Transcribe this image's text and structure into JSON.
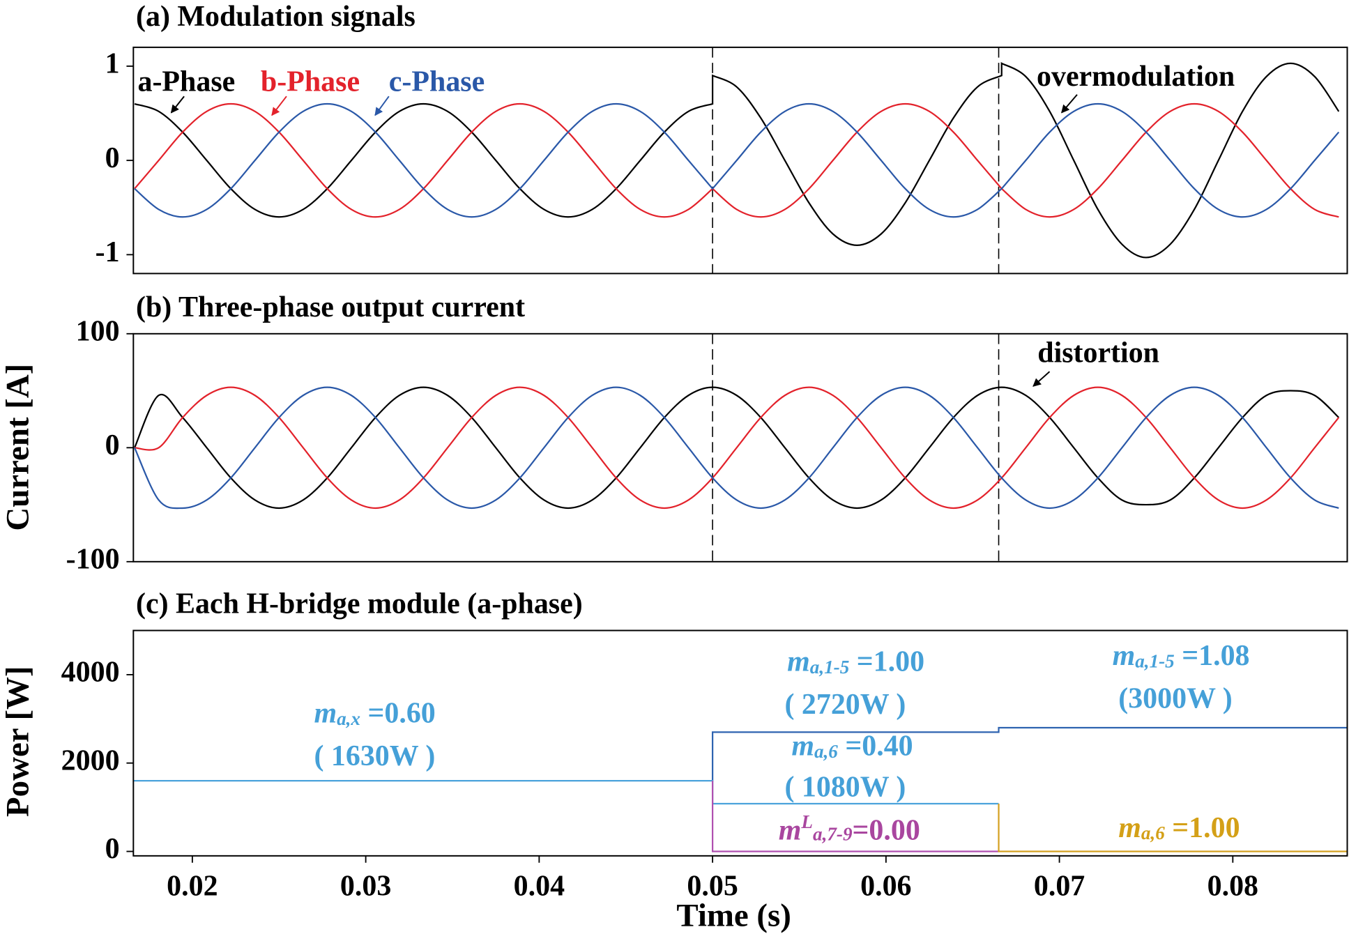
{
  "chart_data": [
    {
      "type": "line",
      "title": "(a) Modulation signals",
      "x": [
        0.01667,
        0.01806,
        0.01944,
        0.02083,
        0.02222,
        0.02361,
        0.025,
        0.02639,
        0.02778,
        0.02917,
        0.03056,
        0.03194,
        0.03333,
        0.03472,
        0.03611,
        0.0375,
        0.03889,
        0.04028,
        0.04167,
        0.04306,
        0.04444,
        0.04583,
        0.04722,
        0.04861,
        0.05,
        0.05,
        0.05139,
        0.05278,
        0.05417,
        0.05556,
        0.05694,
        0.05833,
        0.05972,
        0.06111,
        0.0625,
        0.06389,
        0.06528,
        0.06667,
        0.06667,
        0.06806,
        0.06944,
        0.07083,
        0.07222,
        0.07361,
        0.075,
        0.07639,
        0.07778,
        0.07917,
        0.08056,
        0.08194,
        0.08333,
        0.08472,
        0.08611
      ],
      "series": [
        {
          "name": "a-Phase",
          "color": "#000000",
          "values": [
            0.6,
            0.52,
            0.3,
            0,
            -0.3,
            -0.52,
            -0.6,
            -0.52,
            -0.3,
            0,
            0.3,
            0.52,
            0.6,
            0.52,
            0.3,
            0,
            -0.3,
            -0.52,
            -0.6,
            -0.52,
            -0.3,
            0,
            0.3,
            0.52,
            0.6,
            0.9,
            0.78,
            0.45,
            0,
            -0.45,
            -0.78,
            -0.9,
            -0.78,
            -0.45,
            0,
            0.45,
            0.78,
            0.9,
            1.03,
            0.89,
            0.52,
            0,
            -0.52,
            -0.89,
            -1.03,
            -0.89,
            -0.52,
            0,
            0.52,
            0.89,
            1.03,
            0.89,
            0.52
          ]
        },
        {
          "name": "b-Phase",
          "color": "#e3222b",
          "values": [
            -0.3,
            0,
            0.3,
            0.52,
            0.6,
            0.52,
            0.3,
            0,
            -0.3,
            -0.52,
            -0.6,
            -0.52,
            -0.3,
            0,
            0.3,
            0.52,
            0.6,
            0.52,
            0.3,
            0,
            -0.3,
            -0.52,
            -0.6,
            -0.52,
            -0.3,
            -0.3,
            -0.52,
            -0.6,
            -0.52,
            -0.3,
            0,
            0.3,
            0.52,
            0.6,
            0.52,
            0.3,
            0,
            -0.3,
            -0.3,
            -0.52,
            -0.6,
            -0.52,
            -0.3,
            0,
            0.3,
            0.52,
            0.6,
            0.52,
            0.3,
            0,
            -0.3,
            -0.52,
            -0.6
          ]
        },
        {
          "name": "c-Phase",
          "color": "#2a58a8",
          "values": [
            -0.3,
            -0.52,
            -0.6,
            -0.52,
            -0.3,
            0,
            0.3,
            0.52,
            0.6,
            0.52,
            0.3,
            0,
            -0.3,
            -0.52,
            -0.6,
            -0.52,
            -0.3,
            0,
            0.3,
            0.52,
            0.6,
            0.52,
            0.3,
            0,
            -0.3,
            -0.3,
            0,
            0.3,
            0.52,
            0.6,
            0.52,
            0.3,
            0,
            -0.3,
            -0.52,
            -0.6,
            -0.52,
            -0.3,
            -0.3,
            0,
            0.3,
            0.52,
            0.6,
            0.52,
            0.3,
            0,
            -0.3,
            -0.52,
            -0.6,
            -0.52,
            -0.3,
            0,
            0.3
          ]
        }
      ],
      "xlim": [
        0.0166,
        0.0866
      ],
      "ylim": [
        -1.2,
        1.2
      ],
      "yticks": [
        -1,
        0,
        1
      ],
      "vlines": [
        0.05,
        0.0665
      ],
      "annotations": [
        "overmodulation"
      ]
    },
    {
      "type": "line",
      "title": "(b) Three-phase output current",
      "ylabel": "Current [A]",
      "x": [
        0.01667,
        0.01806,
        0.01944,
        0.02083,
        0.02222,
        0.02361,
        0.025,
        0.02639,
        0.02778,
        0.02917,
        0.03056,
        0.03194,
        0.03333,
        0.03472,
        0.03611,
        0.0375,
        0.03889,
        0.04028,
        0.04167,
        0.04306,
        0.04444,
        0.04583,
        0.04722,
        0.04861,
        0.05,
        0.05139,
        0.05278,
        0.05417,
        0.05556,
        0.05694,
        0.05833,
        0.05972,
        0.06111,
        0.0625,
        0.06389,
        0.06528,
        0.06667,
        0.06806,
        0.06944,
        0.07083,
        0.07222,
        0.07361,
        0.075,
        0.07639,
        0.07778,
        0.07917,
        0.08056,
        0.08194,
        0.08333,
        0.08472,
        0.08611
      ],
      "series": [
        {
          "color": "#000000",
          "values": [
            0,
            45.9,
            26.5,
            0,
            -26.5,
            -45.9,
            -53,
            -45.9,
            -26.5,
            0,
            26.5,
            45.9,
            53,
            45.9,
            26.5,
            0,
            -26.5,
            -45.9,
            -53,
            -45.9,
            -26.5,
            0,
            26.5,
            45.9,
            53,
            45.9,
            26.5,
            0,
            -26.5,
            -45.9,
            -53,
            -45.9,
            -26.5,
            0,
            26.5,
            45.9,
            53,
            45.9,
            26.5,
            0,
            -26.5,
            -45.9,
            -50,
            -45.9,
            -26.5,
            0,
            26.5,
            45.9,
            50,
            45.9,
            26.5
          ]
        },
        {
          "color": "#e3222b",
          "values": [
            0,
            0,
            26.5,
            45.9,
            53,
            45.9,
            26.5,
            0,
            -26.5,
            -45.9,
            -53,
            -45.9,
            -26.5,
            0,
            26.5,
            45.9,
            53,
            45.9,
            26.5,
            0,
            -26.5,
            -45.9,
            -53,
            -45.9,
            -26.5,
            0,
            26.5,
            45.9,
            53,
            45.9,
            26.5,
            0,
            -26.5,
            -45.9,
            -53,
            -45.9,
            -26.5,
            0,
            26.5,
            45.9,
            53,
            45.9,
            26.5,
            0,
            -26.5,
            -45.9,
            -53,
            -45.9,
            -26.5,
            0,
            26.5
          ]
        },
        {
          "color": "#2a58a8",
          "values": [
            0,
            -45.9,
            -53,
            -45.9,
            -26.5,
            0,
            26.5,
            45.9,
            53,
            45.9,
            26.5,
            0,
            -26.5,
            -45.9,
            -53,
            -45.9,
            -26.5,
            0,
            26.5,
            45.9,
            53,
            45.9,
            26.5,
            0,
            -26.5,
            -45.9,
            -53,
            -45.9,
            -26.5,
            0,
            26.5,
            45.9,
            53,
            45.9,
            26.5,
            0,
            -26.5,
            -45.9,
            -53,
            -45.9,
            -26.5,
            0,
            26.5,
            45.9,
            53,
            45.9,
            26.5,
            0,
            -26.5,
            -45.9,
            -53
          ]
        }
      ],
      "xlim": [
        0.0166,
        0.0866
      ],
      "ylim": [
        -100,
        100
      ],
      "yticks": [
        -100,
        0,
        100
      ],
      "vlines": [
        0.05,
        0.0665
      ],
      "annotations": [
        "distortion"
      ]
    },
    {
      "type": "line",
      "title": "(c) Each H-bridge module (a-phase)",
      "ylabel": "Power [W]",
      "xlabel": "Time (s)",
      "x": [
        0.0166,
        0.05,
        0.05,
        0.0665,
        0.0665,
        0.0866
      ],
      "series": [
        {
          "color": "#2e63b0",
          "values": [
            1600,
            1600,
            2700,
            2700,
            2800,
            2800
          ]
        },
        {
          "color": "#4aa3dc",
          "values": [
            1600,
            1600,
            1080,
            1080,
            null,
            null
          ]
        },
        {
          "color": "#b050b0",
          "values": [
            null,
            1600,
            0,
            0,
            null,
            null
          ]
        },
        {
          "color": "#d4a020",
          "values": [
            null,
            null,
            null,
            1080,
            0,
            0
          ]
        }
      ],
      "xlim": [
        0.0166,
        0.0866
      ],
      "ylim": [
        -100,
        5000
      ],
      "yticks": [
        0,
        2000,
        4000
      ],
      "xticks": [
        0.02,
        0.03,
        0.04,
        0.05,
        0.06,
        0.07,
        0.08
      ],
      "annotations": [
        {
          "symbol": "m",
          "sub": "a,x",
          "text": " =0.60"
        },
        {
          "symbol": "m",
          "sub": "a,1-5",
          "text": " =1.00"
        },
        {
          "symbol": "m",
          "sub": "a,6",
          "text": " =0.40"
        },
        {
          "symbol": "m",
          "sup": "L",
          "sub": "a,7-9",
          "text": "=0.00"
        },
        {
          "symbol": "m",
          "sub": "a,1-5",
          "text": " =1.08"
        },
        {
          "symbol": "m",
          "sub": "a,6",
          "text": " =1.00"
        }
      ],
      "power_labels": [
        "( 1630W )",
        "( 2720W )",
        "( 1080W )",
        "(3000W )"
      ]
    }
  ]
}
